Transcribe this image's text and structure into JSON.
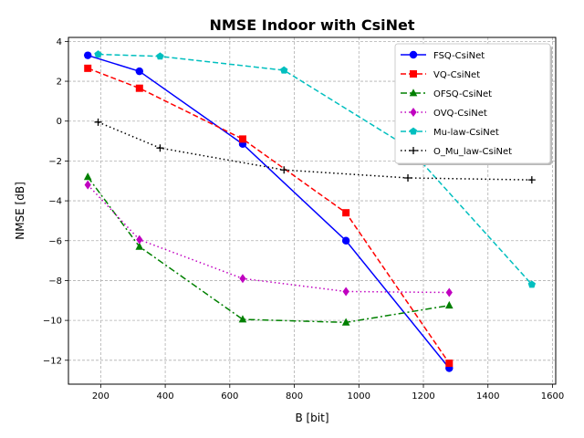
{
  "chart_data": {
    "type": "line",
    "title": "NMSE Indoor with CsiNet",
    "xlabel": "B [bit]",
    "ylabel": "NMSE [dB]",
    "xlim": [
      100,
      1610
    ],
    "ylim": [
      -13.2,
      4.2
    ],
    "xticks": [
      200,
      400,
      600,
      800,
      1000,
      1200,
      1400,
      1600
    ],
    "yticks": [
      4,
      2,
      0,
      -2,
      -4,
      -6,
      -8,
      -10,
      -12
    ],
    "grid": true,
    "legend_position": "top-right",
    "series": [
      {
        "name": "FSQ-CsiNet",
        "color": "#0000ff",
        "dash": "solid",
        "marker": "circle",
        "x": [
          160,
          320,
          640,
          960,
          1280
        ],
        "y": [
          3.3,
          2.5,
          -1.15,
          -6.0,
          -12.4
        ]
      },
      {
        "name": "VQ-CsiNet",
        "color": "#ff0000",
        "dash": "dashed",
        "marker": "square",
        "x": [
          160,
          320,
          640,
          960,
          1280
        ],
        "y": [
          2.65,
          1.65,
          -0.9,
          -4.6,
          -12.15
        ]
      },
      {
        "name": "OFSQ-CsiNet",
        "color": "#008000",
        "dash": "dashdot",
        "marker": "triangle",
        "x": [
          160,
          320,
          640,
          960,
          1280
        ],
        "y": [
          -2.8,
          -6.3,
          -9.95,
          -10.1,
          -9.25
        ]
      },
      {
        "name": "OVQ-CsiNet",
        "color": "#c000c0",
        "dash": "dotted",
        "marker": "diamond",
        "x": [
          160,
          320,
          640,
          960,
          1280
        ],
        "y": [
          -3.2,
          -5.95,
          -7.9,
          -8.55,
          -8.6
        ]
      },
      {
        "name": "Mu-law-CsiNet",
        "color": "#00bfbf",
        "dash": "dashed",
        "marker": "pentagon",
        "x": [
          192,
          384,
          768,
          1152,
          1536
        ],
        "y": [
          3.35,
          3.25,
          2.55,
          -1.3,
          -8.2
        ]
      },
      {
        "name": "O_Mu_law-CsiNet",
        "color": "#000000",
        "dash": "dotted",
        "marker": "plus",
        "x": [
          192,
          384,
          768,
          1152,
          1536
        ],
        "y": [
          -0.05,
          -1.35,
          -2.45,
          -2.85,
          -2.95
        ]
      }
    ]
  }
}
